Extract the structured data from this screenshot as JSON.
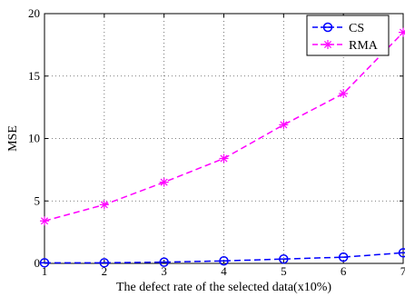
{
  "chart_data": {
    "type": "line",
    "xlabel": "The defect rate of the selected data(x10%)",
    "ylabel": "MSE",
    "x": [
      1,
      2,
      3,
      4,
      5,
      6,
      7
    ],
    "xlim": [
      1,
      7
    ],
    "ylim": [
      0,
      20
    ],
    "xticks": [
      "1",
      "2",
      "3",
      "4",
      "5",
      "6",
      "7"
    ],
    "yticks": [
      "0",
      "5",
      "10",
      "15",
      "20"
    ],
    "grid": true,
    "legend_position": "top-right",
    "series": [
      {
        "name": "CS",
        "values": [
          0.05,
          0.05,
          0.1,
          0.2,
          0.35,
          0.5,
          0.85
        ],
        "color": "#0000ff",
        "marker": "circle",
        "line": "dashed"
      },
      {
        "name": "RMA",
        "values": [
          3.4,
          4.7,
          6.5,
          8.4,
          11.1,
          13.6,
          18.5
        ],
        "color": "#ff00ff",
        "marker": "asterisk",
        "line": "dashed"
      }
    ]
  }
}
